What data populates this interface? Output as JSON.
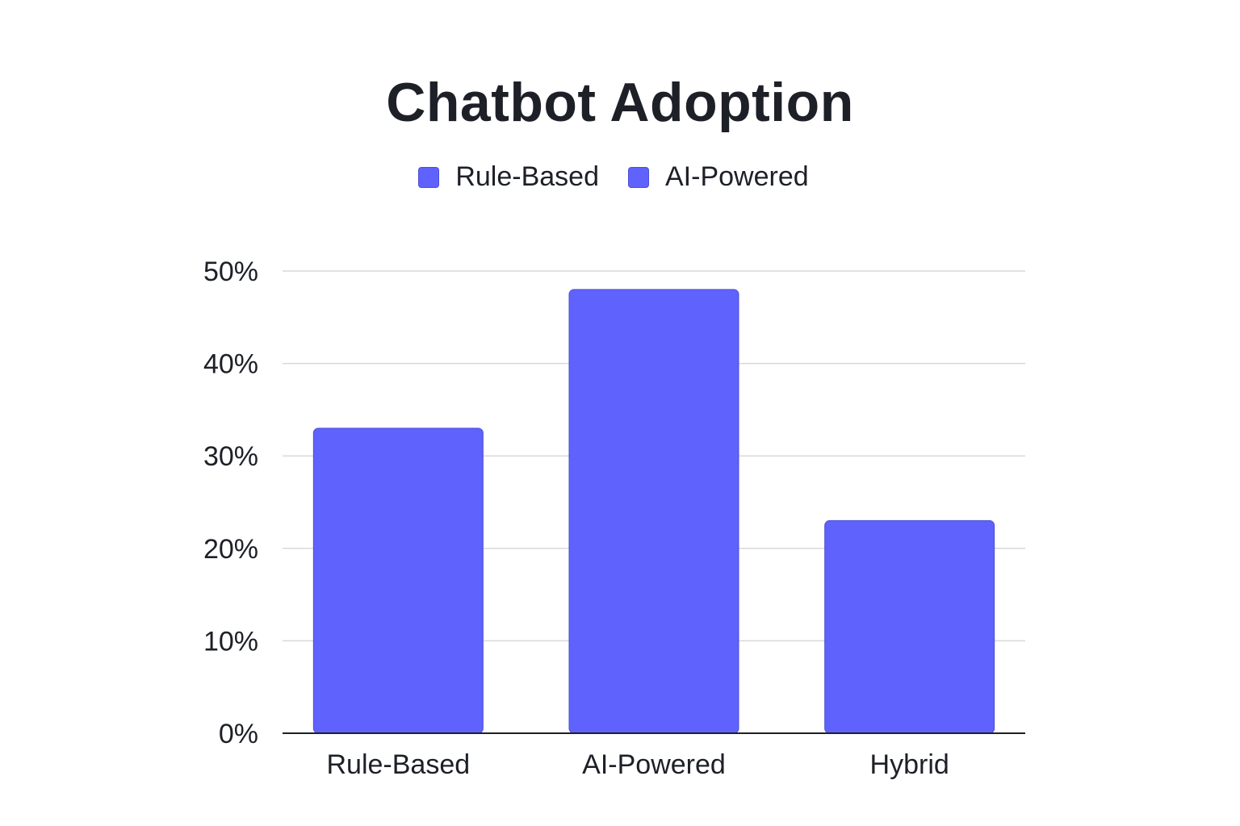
{
  "chart_data": {
    "type": "bar",
    "title": "Chatbot Adoption",
    "legend": [
      "Rule-Based",
      "AI-Powered"
    ],
    "legend_position": "top-center",
    "categories": [
      "Rule-Based",
      "AI-Powered",
      "Hybrid"
    ],
    "values": [
      33,
      48,
      23
    ],
    "y_unit": "%",
    "ylim": [
      0,
      50
    ],
    "yticks": [
      "0%",
      "10%",
      "20%",
      "30%",
      "40%",
      "50%"
    ],
    "grid": true,
    "xlabel": "",
    "ylabel": ""
  },
  "colors": {
    "bar": "#5f62fd",
    "grid": "#d9d9d9",
    "axis": "#1d2027",
    "text": "#1d2027"
  }
}
